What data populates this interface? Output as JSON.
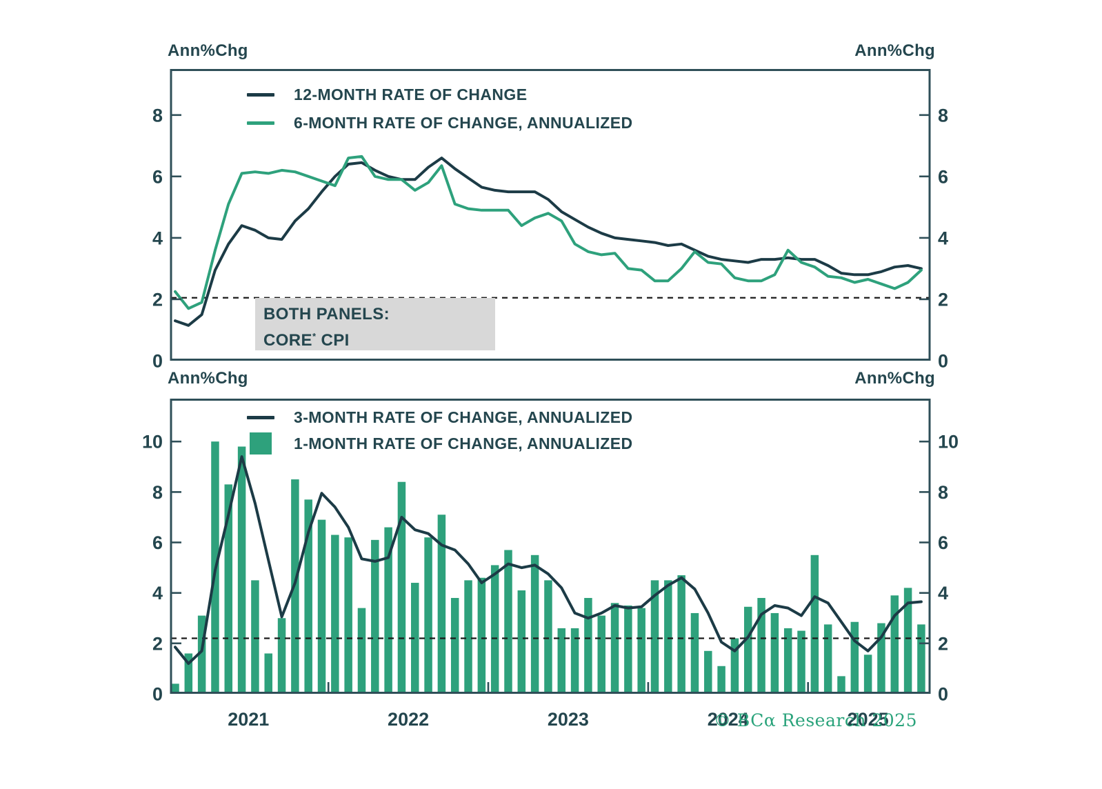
{
  "labels": {
    "ann_top_left": "Ann%Chg",
    "ann_top_right": "Ann%Chg",
    "ann_mid_left": "Ann%Chg",
    "ann_mid_right": "Ann%Chg"
  },
  "note": {
    "line1": "BOTH PANELS:",
    "line2_base": "CORE",
    "line2_sup": "*",
    "line2_rest": " CPI"
  },
  "copyright": {
    "text": "© BCα Research 2025"
  },
  "colors": {
    "dark_line": "#1c3b46",
    "green": "#2ea17c",
    "text": "#24464e",
    "axis": "#2f4f58",
    "dash": "#1b1b1b",
    "note_bg": "#d8d8d8"
  },
  "chart_data": [
    {
      "type": "line",
      "panel": "top",
      "subject": "CORE CPI",
      "x_months": {
        "start": "2021-01",
        "end": "2025-09",
        "count": 57
      },
      "x_year_ticks": [],
      "ylim": [
        0,
        9.5
      ],
      "yticks": [
        0,
        2,
        4,
        6,
        8
      ],
      "ylabel_left": "Ann%Chg",
      "ylabel_right": "Ann%Chg",
      "dashed_reference": 2.05,
      "grid": false,
      "legend_position": "top-left-inside",
      "legend": [
        {
          "label": "12-MONTH RATE OF CHANGE",
          "color_key": "dark_line",
          "swatch": "line"
        },
        {
          "label": "6-MONTH RATE OF CHANGE, ANNUALIZED",
          "color_key": "green",
          "swatch": "line"
        }
      ],
      "series": [
        {
          "name": "12-MONTH RATE OF CHANGE",
          "type": "line",
          "color_key": "dark_line",
          "values": [
            1.3,
            1.15,
            1.5,
            2.95,
            3.8,
            4.4,
            4.25,
            4.0,
            3.95,
            4.55,
            4.95,
            5.5,
            6.0,
            6.4,
            6.45,
            6.2,
            6.0,
            5.9,
            5.9,
            6.3,
            6.6,
            6.25,
            5.95,
            5.65,
            5.55,
            5.5,
            5.5,
            5.5,
            5.25,
            4.85,
            4.6,
            4.35,
            4.15,
            4.0,
            3.95,
            3.9,
            3.85,
            3.75,
            3.8,
            3.6,
            3.4,
            3.3,
            3.25,
            3.2,
            3.3,
            3.3,
            3.35,
            3.3,
            3.3,
            3.1,
            2.85,
            2.8,
            2.8,
            2.9,
            3.05,
            3.1,
            3.0
          ]
        },
        {
          "name": "6-MONTH RATE OF CHANGE, ANNUALIZED",
          "type": "line",
          "color_key": "green",
          "values": [
            2.25,
            1.7,
            1.9,
            3.6,
            5.1,
            6.1,
            6.15,
            6.1,
            6.2,
            6.15,
            6.0,
            5.85,
            5.7,
            6.6,
            6.65,
            6.0,
            5.9,
            5.9,
            5.55,
            5.8,
            6.35,
            5.1,
            4.95,
            4.9,
            4.9,
            4.9,
            4.4,
            4.65,
            4.8,
            4.55,
            3.8,
            3.55,
            3.45,
            3.5,
            3.0,
            2.95,
            2.6,
            2.6,
            3.0,
            3.55,
            3.2,
            3.15,
            2.7,
            2.6,
            2.6,
            2.8,
            3.6,
            3.2,
            3.05,
            2.75,
            2.7,
            2.55,
            2.65,
            2.5,
            2.35,
            2.55,
            2.95
          ]
        }
      ]
    },
    {
      "type": "bar",
      "panel": "bottom",
      "subject": "CORE CPI",
      "x_months": {
        "start": "2021-01",
        "end": "2025-09",
        "count": 57
      },
      "x_year_labels": [
        "2021",
        "2022",
        "2023",
        "2024",
        "2025"
      ],
      "ylim": [
        0,
        11.7
      ],
      "yticks": [
        0,
        2,
        4,
        6,
        8,
        10
      ],
      "ylabel_left": "Ann%Chg",
      "ylabel_right": "Ann%Chg",
      "dashed_reference": 2.2,
      "grid": false,
      "legend_position": "top-left-inside",
      "legend": [
        {
          "label": "3-MONTH RATE OF CHANGE, ANNUALIZED",
          "color_key": "dark_line",
          "swatch": "line"
        },
        {
          "label": "1-MONTH RATE OF CHANGE, ANNUALIZED",
          "color_key": "green",
          "swatch": "square"
        }
      ],
      "series": [
        {
          "name": "3-MONTH RATE OF CHANGE, ANNUALIZED",
          "type": "line",
          "color_key": "dark_line",
          "values": [
            1.85,
            1.2,
            1.7,
            4.9,
            7.1,
            9.4,
            7.55,
            5.3,
            3.05,
            4.4,
            6.4,
            7.95,
            7.4,
            6.6,
            5.35,
            5.25,
            5.4,
            7.0,
            6.5,
            6.35,
            5.9,
            5.7,
            5.15,
            4.4,
            4.75,
            5.15,
            5.0,
            5.1,
            4.75,
            4.2,
            3.2,
            3.0,
            3.2,
            3.5,
            3.4,
            3.45,
            3.9,
            4.3,
            4.6,
            4.15,
            3.2,
            2.05,
            1.7,
            2.25,
            3.15,
            3.5,
            3.4,
            3.1,
            3.85,
            3.6,
            2.85,
            2.1,
            1.7,
            2.25,
            3.1,
            3.6,
            3.65
          ]
        },
        {
          "name": "1-MONTH RATE OF CHANGE, ANNUALIZED",
          "type": "bar",
          "color_key": "green",
          "values": [
            0.4,
            1.6,
            3.1,
            10.0,
            8.3,
            9.8,
            4.5,
            1.6,
            3.0,
            8.5,
            7.7,
            6.9,
            6.3,
            6.2,
            3.4,
            6.1,
            6.6,
            8.4,
            4.4,
            6.2,
            7.1,
            3.8,
            4.5,
            4.6,
            5.1,
            5.7,
            4.1,
            5.5,
            4.5,
            2.6,
            2.6,
            3.8,
            3.1,
            3.6,
            3.5,
            3.4,
            4.5,
            4.5,
            4.7,
            3.2,
            1.7,
            1.1,
            2.2,
            3.45,
            3.8,
            3.2,
            2.6,
            2.5,
            5.5,
            2.75,
            0.7,
            2.85,
            1.55,
            2.8,
            3.9,
            4.2,
            2.75
          ]
        }
      ]
    }
  ]
}
